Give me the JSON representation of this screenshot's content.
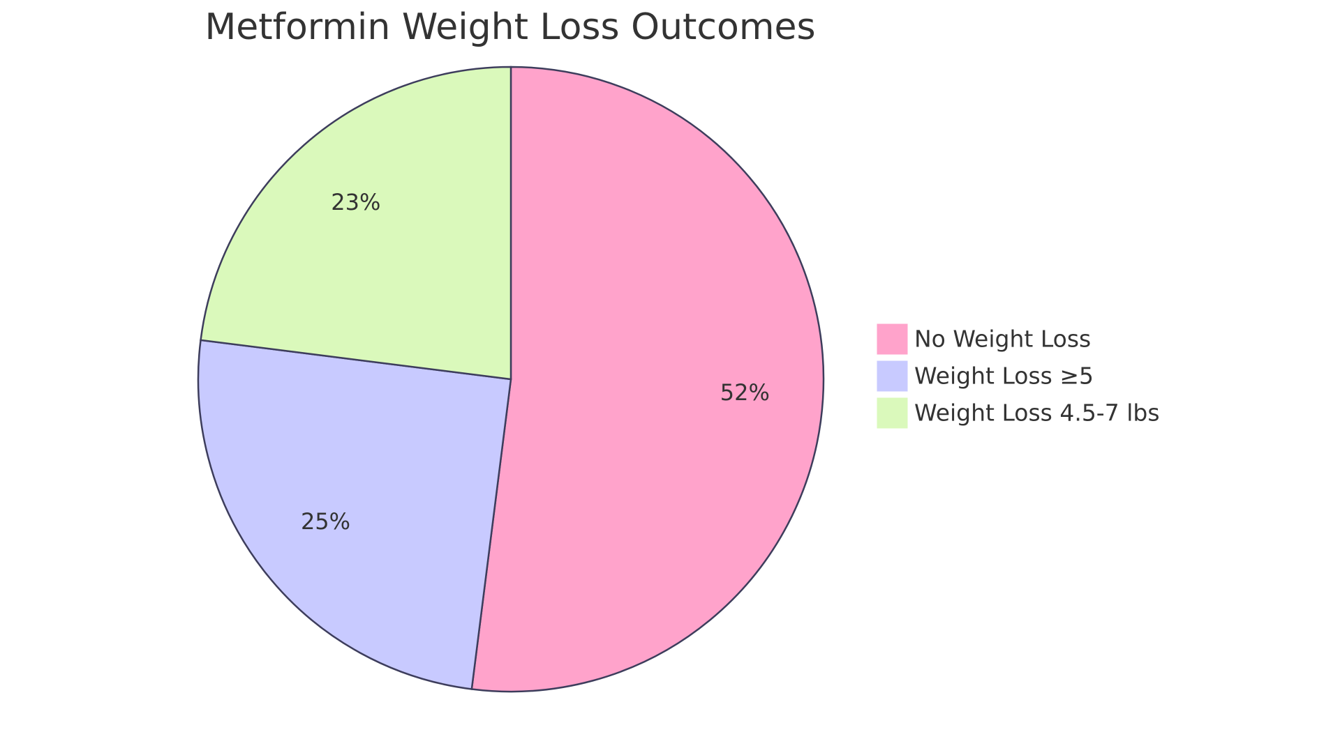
{
  "chart_data": {
    "type": "pie",
    "title": "Metformin Weight Loss Outcomes",
    "categories": [
      "No Weight Loss",
      "Weight Loss ≥5",
      "Weight Loss 4.5-7 lbs"
    ],
    "values": [
      52,
      25,
      23
    ],
    "value_labels": [
      "52%",
      "25%",
      "23%"
    ],
    "colors": [
      "#ffa3cb",
      "#c8caff",
      "#daf9bb"
    ],
    "legend": "right"
  }
}
